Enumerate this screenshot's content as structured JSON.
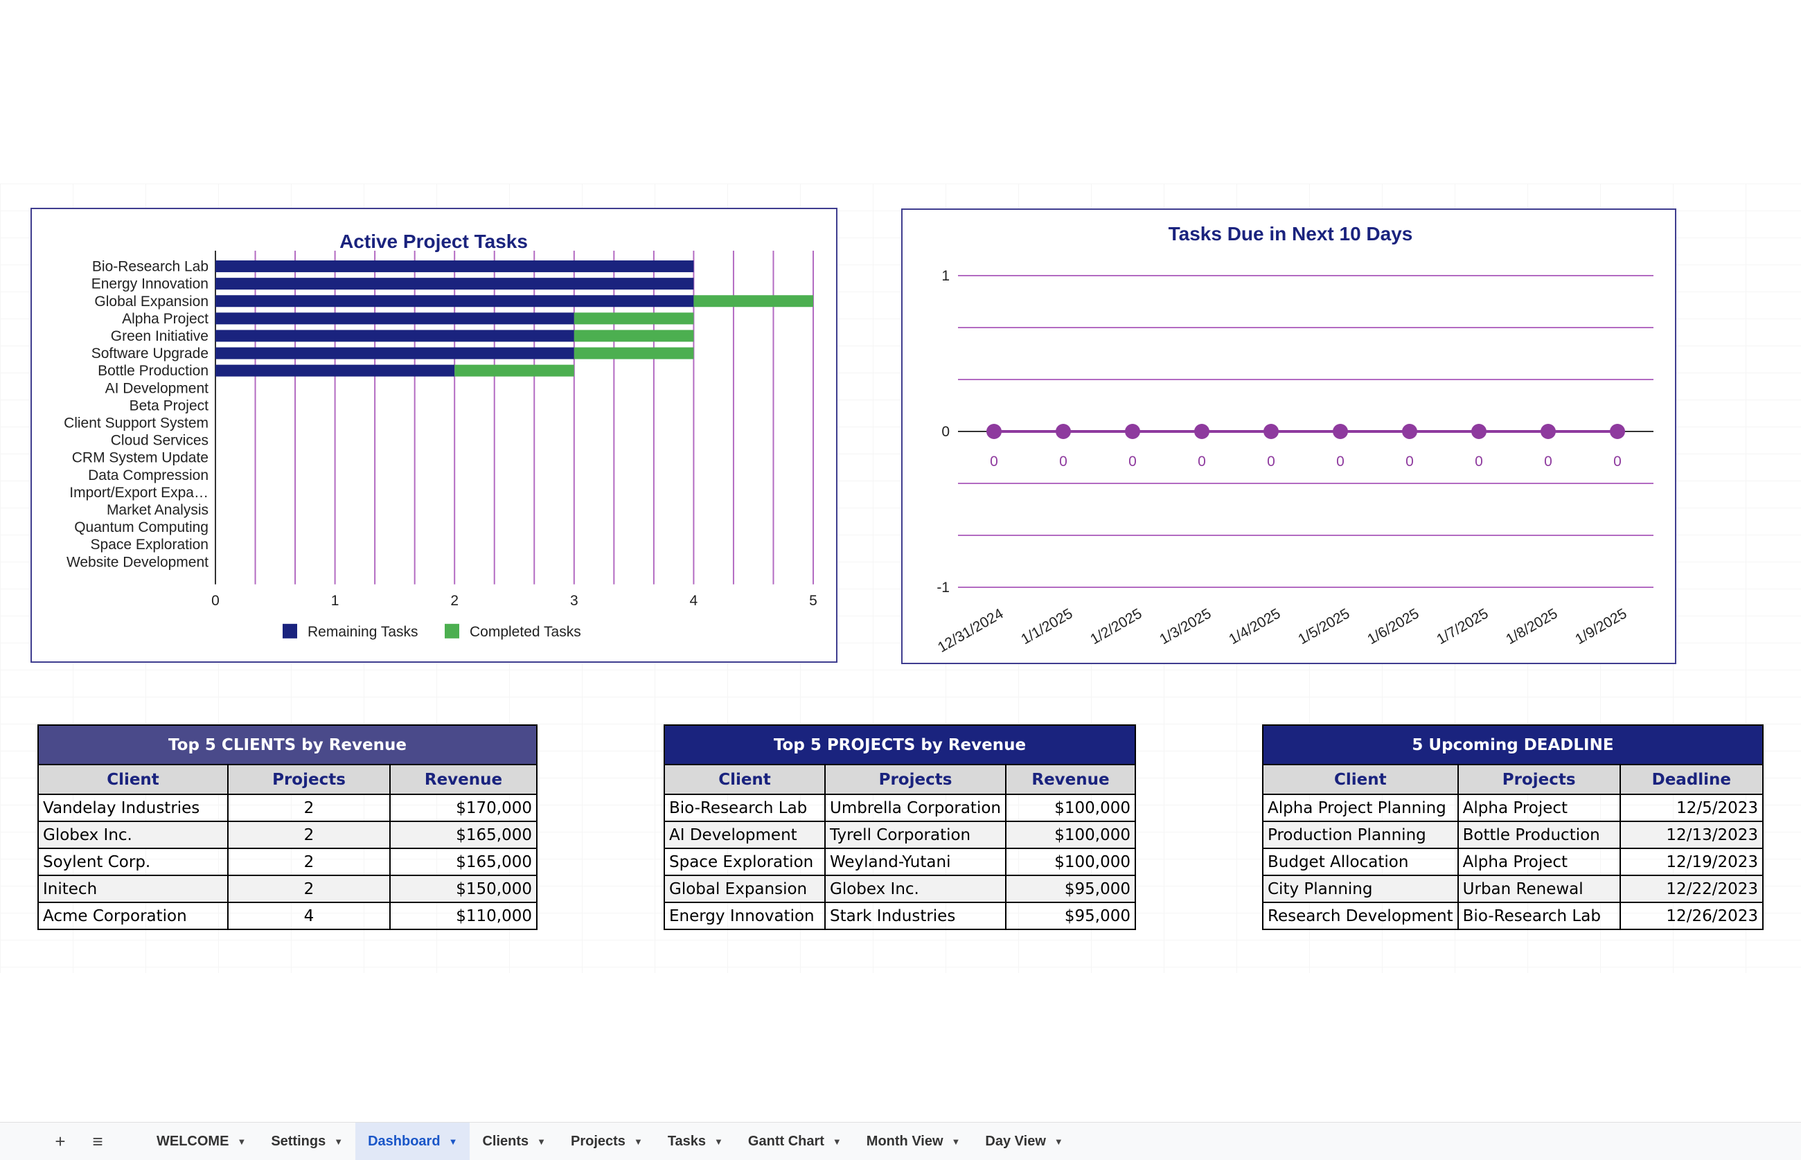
{
  "colors": {
    "navy": "#1a237e",
    "remaining": "#1a237e",
    "completed": "#4caf50",
    "line": "#8e3a9e",
    "title_purple": "#4a4a8a"
  },
  "chart_data": [
    {
      "type": "bar",
      "orientation": "horizontal",
      "stacked": true,
      "title": "Active Project Tasks",
      "categories": [
        "Bio-Research Lab",
        "Energy Innovation",
        "Global Expansion",
        "Alpha Project",
        "Green Initiative",
        "Software Upgrade",
        "Bottle Production",
        "AI Development",
        "Beta Project",
        "Client Support System",
        "Cloud Services",
        "CRM System Update",
        "Data Compression",
        "Import/Export Expa…",
        "Market Analysis",
        "Quantum Computing",
        "Space Exploration",
        "Website Development"
      ],
      "series": [
        {
          "name": "Remaining Tasks",
          "values": [
            4,
            4,
            4,
            3,
            3,
            3,
            2,
            0,
            0,
            0,
            0,
            0,
            0,
            0,
            0,
            0,
            0,
            0
          ]
        },
        {
          "name": "Completed Tasks",
          "values": [
            0,
            0,
            1,
            1,
            1,
            1,
            1,
            0,
            0,
            0,
            0,
            0,
            0,
            0,
            0,
            0,
            0,
            0
          ]
        }
      ],
      "xlim": [
        0,
        5
      ],
      "x_ticks": [
        "0",
        "1",
        "2",
        "3",
        "4",
        "5"
      ],
      "legend": "bottom",
      "grid": true
    },
    {
      "type": "line",
      "title": "Tasks Due in Next 10 Days",
      "x": [
        "12/31/2024",
        "1/1/2025",
        "1/2/2025",
        "1/3/2025",
        "1/4/2025",
        "1/5/2025",
        "1/6/2025",
        "1/7/2025",
        "1/8/2025",
        "1/9/2025"
      ],
      "series": [
        {
          "values": [
            0,
            0,
            0,
            0,
            0,
            0,
            0,
            0,
            0,
            0
          ]
        }
      ],
      "data_labels": [
        "0",
        "0",
        "0",
        "0",
        "0",
        "0",
        "0",
        "0",
        "0",
        "0"
      ],
      "ylim": [
        -1,
        1
      ],
      "y_ticks": [
        "1",
        "0",
        "-1"
      ],
      "grid": true
    }
  ],
  "tables": {
    "clients": {
      "title": "Top 5 CLIENTS by Revenue",
      "headers": [
        "Client",
        "Projects",
        "Revenue"
      ],
      "rows": [
        [
          "Vandelay Industries",
          "2",
          "$170,000"
        ],
        [
          "Globex Inc.",
          "2",
          "$165,000"
        ],
        [
          "Soylent Corp.",
          "2",
          "$165,000"
        ],
        [
          "Initech",
          "2",
          "$150,000"
        ],
        [
          "Acme Corporation",
          "4",
          "$110,000"
        ]
      ]
    },
    "projects": {
      "title": "Top 5 PROJECTS by Revenue",
      "headers": [
        "Client",
        "Projects",
        "Revenue"
      ],
      "rows": [
        [
          "Bio-Research Lab",
          "Umbrella Corporation",
          "$100,000"
        ],
        [
          "AI Development",
          "Tyrell Corporation",
          "$100,000"
        ],
        [
          "Space Exploration",
          "Weyland-Yutani",
          "$100,000"
        ],
        [
          "Global Expansion",
          "Globex Inc.",
          "$95,000"
        ],
        [
          "Energy Innovation",
          "Stark Industries",
          "$95,000"
        ]
      ]
    },
    "deadlines": {
      "title": "5 Upcoming DEADLINE",
      "headers": [
        "Client",
        "Projects",
        "Deadline"
      ],
      "rows": [
        [
          "Alpha Project Planning",
          "Alpha Project",
          "12/5/2023"
        ],
        [
          "Production Planning",
          "Bottle Production",
          "12/13/2023"
        ],
        [
          "Budget Allocation",
          "Alpha Project",
          "12/19/2023"
        ],
        [
          "City Planning",
          "Urban Renewal",
          "12/22/2023"
        ],
        [
          "Research Development",
          "Bio-Research Lab",
          "12/26/2023"
        ]
      ]
    }
  },
  "sheet_tabs": {
    "add_icon": "plus-icon",
    "menu_icon": "menu-icon",
    "tabs": [
      "WELCOME",
      "Settings",
      "Dashboard",
      "Clients",
      "Projects",
      "Tasks",
      "Gantt Chart",
      "Month View",
      "Day View"
    ],
    "active": "Dashboard"
  }
}
